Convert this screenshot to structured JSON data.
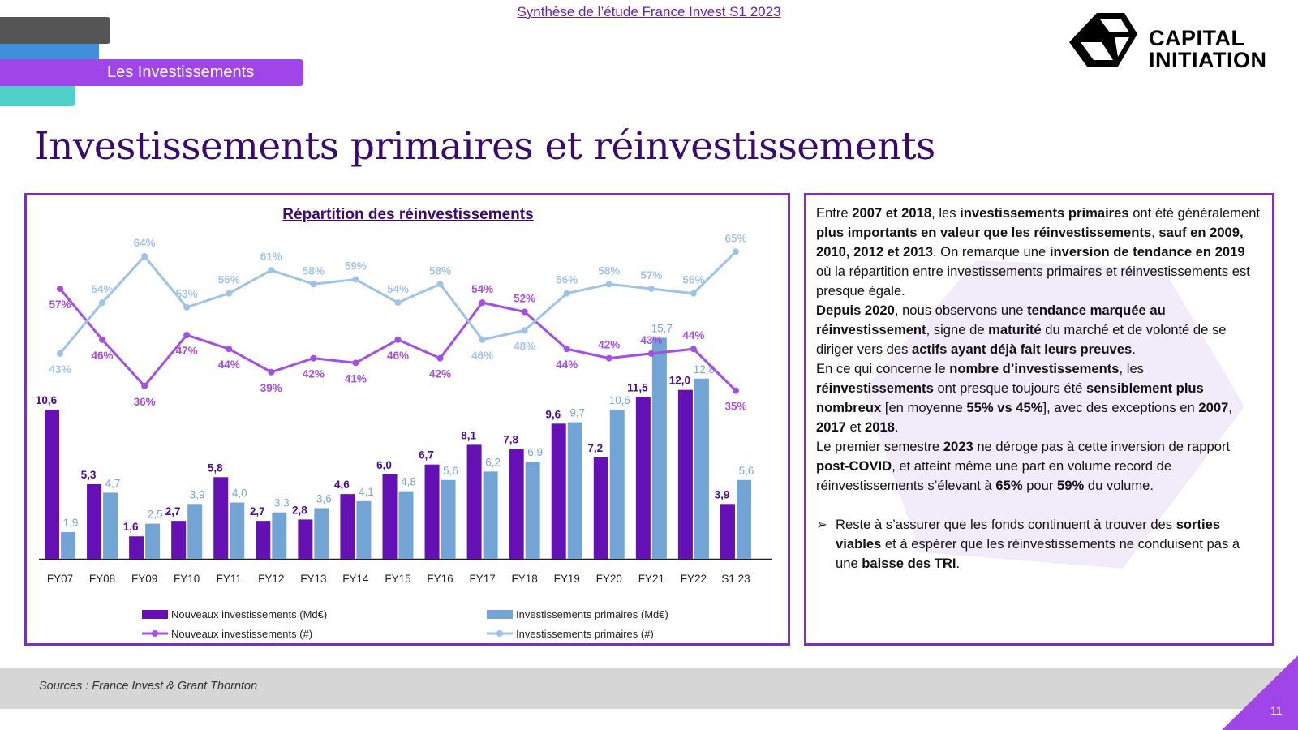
{
  "header": {
    "top_title": "Synthèse de l’étude France Invest S1 2023",
    "section_label": "Les Investissements",
    "logo_line1": "CAPITAL",
    "logo_line2": "INITIATION"
  },
  "main_title": "Investissements primaires et réinvestissements",
  "colors": {
    "purple_bar": "#6410b4",
    "blue_bar": "#72a5d6",
    "purple_line": "#a44ee2",
    "blue_line": "#9ec3e6",
    "accent": "#7a2ec8"
  },
  "chart_data": {
    "type": "bar+line",
    "title": "Répartition des réinvestissements",
    "categories": [
      "FY07",
      "FY08",
      "FY09",
      "FY10",
      "FY11",
      "FY12",
      "FY13",
      "FY14",
      "FY15",
      "FY16",
      "FY17",
      "FY18",
      "FY19",
      "FY20",
      "FY21",
      "FY22",
      "S1 23"
    ],
    "bar_series": [
      {
        "name": "Nouveaux investissements (Md€)",
        "values": [
          10.6,
          5.3,
          1.6,
          2.7,
          5.8,
          2.7,
          2.8,
          4.6,
          6.0,
          6.7,
          8.1,
          7.8,
          9.6,
          7.2,
          11.5,
          12.0,
          3.9
        ],
        "labels": [
          "10,6",
          "5,3",
          "1,6",
          "2,7",
          "5,8",
          "2,7",
          "2,8",
          "4,6",
          "6,0",
          "6,7",
          "8,1",
          "7,8",
          "9,6",
          "7,2",
          "11,5",
          "12,0",
          "3,9"
        ]
      },
      {
        "name": "Investissements primaires (Md€)",
        "values": [
          1.9,
          4.7,
          2.5,
          3.9,
          4.0,
          3.3,
          3.6,
          4.1,
          4.8,
          5.6,
          6.2,
          6.9,
          9.7,
          10.6,
          15.7,
          12.8,
          5.6
        ],
        "labels": [
          "1,9",
          "4,7",
          "2,5",
          "3,9",
          "4,0",
          "3,3",
          "3,6",
          "4,1",
          "4,8",
          "5,6",
          "6,2",
          "6,9",
          "9,7",
          "10,6",
          "15,7",
          "12,8",
          "5,6"
        ]
      }
    ],
    "line_series": [
      {
        "name": "Nouveaux investissements (#)",
        "values": [
          57,
          46,
          36,
          47,
          44,
          39,
          42,
          41,
          46,
          42,
          54,
          52,
          44,
          42,
          43,
          44,
          35
        ],
        "unit": "%"
      },
      {
        "name": "Investissements primaires (#)",
        "values": [
          43,
          54,
          64,
          53,
          56,
          61,
          58,
          59,
          54,
          58,
          46,
          48,
          56,
          58,
          57,
          56,
          65
        ],
        "unit": "%"
      }
    ],
    "legend_placement": "bottom"
  },
  "text_panel": {
    "paragraphs": [
      [
        {
          "t": "Entre "
        },
        {
          "t": "2007 et 2018",
          "b": 1
        },
        {
          "t": ", les "
        },
        {
          "t": "investissements primaires",
          "b": 1
        },
        {
          "t": " ont été généralement "
        },
        {
          "t": "plus importants en valeur que les réinvestissements",
          "b": 1
        },
        {
          "t": ", "
        },
        {
          "t": "sauf en 2009, 2010, 2012 et 2013",
          "b": 1
        },
        {
          "t": ". On remarque une "
        },
        {
          "t": "inversion de tendance en 2019",
          "b": 1
        },
        {
          "t": " où la répartition entre investissements primaires et réinvestissements est presque égale."
        }
      ],
      [
        {
          "t": "Depuis 2020",
          "b": 1
        },
        {
          "t": ", nous observons une "
        },
        {
          "t": "tendance marquée au réinvestissement",
          "b": 1
        },
        {
          "t": ", signe de "
        },
        {
          "t": "maturité",
          "b": 1
        },
        {
          "t": " du marché et de volonté de se diriger vers des "
        },
        {
          "t": "actifs ayant déjà fait leurs preuves",
          "b": 1
        },
        {
          "t": "."
        }
      ],
      [
        {
          "t": "En ce qui concerne le "
        },
        {
          "t": "nombre d’investissements",
          "b": 1
        },
        {
          "t": ", les "
        },
        {
          "t": "réinvestissements",
          "b": 1
        },
        {
          "t": " ont presque toujours été "
        },
        {
          "t": "sensiblement plus nombreux",
          "b": 1
        },
        {
          "t": " [en moyenne "
        },
        {
          "t": "55% vs 45%",
          "b": 1
        },
        {
          "t": "], avec des exceptions en "
        },
        {
          "t": "2007",
          "b": 1
        },
        {
          "t": ", "
        },
        {
          "t": "2017",
          "b": 1
        },
        {
          "t": " et "
        },
        {
          "t": "2018",
          "b": 1
        },
        {
          "t": "."
        }
      ],
      [
        {
          "t": "Le premier semestre "
        },
        {
          "t": "2023",
          "b": 1
        },
        {
          "t": " ne déroge pas à cette inversion de rapport "
        },
        {
          "t": "post-COVID",
          "b": 1
        },
        {
          "t": ", et atteint même une part en volume record de réinvestissements s’élevant à "
        },
        {
          "t": "65%",
          "b": 1
        },
        {
          "t": " pour "
        },
        {
          "t": "59%",
          "b": 1
        },
        {
          "t": " du volume."
        }
      ]
    ],
    "bullet": [
      {
        "t": "Reste à s’assurer que les fonds continuent à trouver des "
      },
      {
        "t": "sorties viables",
        "b": 1
      },
      {
        "t": " et à espérer que les réinvestissements ne conduisent pas à une "
      },
      {
        "t": "baisse des TRI",
        "b": 1
      },
      {
        "t": "."
      }
    ],
    "bullet_marker": "➢"
  },
  "footer": {
    "sources": "Sources : France Invest & Grant Thornton",
    "page_number": "11"
  }
}
